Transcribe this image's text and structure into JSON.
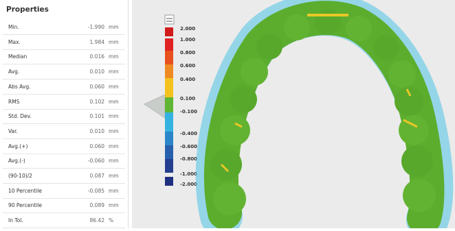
{
  "properties": {
    "title": "Properties",
    "rows": [
      {
        "label": "Min.",
        "value": "-1.990",
        "unit": "mm"
      },
      {
        "label": "Max.",
        "value": "1.984",
        "unit": "mm"
      },
      {
        "label": "Median",
        "value": "0.016",
        "unit": "mm"
      },
      {
        "label": "Avg.",
        "value": "0.010",
        "unit": "mm"
      },
      {
        "label": "Abs Avg.",
        "value": "0.060",
        "unit": "mm"
      },
      {
        "label": "RMS",
        "value": "0.102",
        "unit": "mm"
      },
      {
        "label": "Std. Dev.",
        "value": "0.101",
        "unit": "mm"
      },
      {
        "label": "Var.",
        "value": "0.010",
        "unit": "mm"
      },
      {
        "label": "Avg.(+)",
        "value": "0.060",
        "unit": "mm"
      },
      {
        "label": "Avg.(-)",
        "value": "-0.060",
        "unit": "mm"
      },
      {
        "label": "(90-10)/2",
        "value": "0.087",
        "unit": "mm"
      },
      {
        "label": "10 Percentile",
        "value": "-0.085",
        "unit": "mm"
      },
      {
        "label": "90 Percentile",
        "value": "0.089",
        "unit": "mm"
      },
      {
        "label": "In Tol.",
        "value": "86.42",
        "unit": "%"
      }
    ]
  },
  "color_scale": {
    "labels": [
      "2.000",
      "1.000",
      "0.800",
      "0.600",
      "0.400",
      "0.100",
      "-0.100",
      "-0.400",
      "-0.600",
      "-0.800",
      "-1.000",
      "-2.000"
    ]
  }
}
